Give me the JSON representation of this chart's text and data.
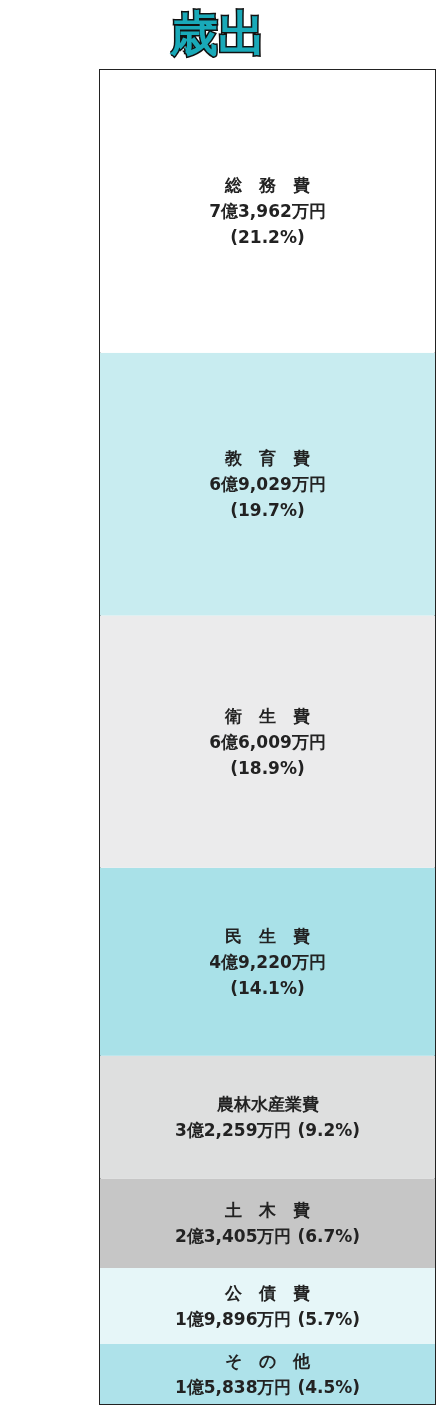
{
  "chart_data": {
    "type": "bar",
    "title": "歳出",
    "stacked": true,
    "categories": [
      null
    ],
    "legend": false,
    "tick_labels": false,
    "grid": false,
    "series": [
      {
        "name": "そ　の　他",
        "color": "#aee2ea",
        "values": [
          4.5
        ],
        "value_labels": [
          "1億5,838万円 (4.5%)"
        ]
      },
      {
        "name": "公　債　費",
        "color": "#e6f6f8",
        "values": [
          5.7
        ],
        "value_labels": [
          "1億9,896万円 (5.7%)"
        ]
      },
      {
        "name": "土　木　費",
        "color": "#c6c6c6",
        "values": [
          6.7
        ],
        "value_labels": [
          "2億3,405万円 (6.7%)"
        ]
      },
      {
        "name": "農林水産業費",
        "color": "#dedfdf",
        "values": [
          9.2
        ],
        "value_labels": [
          "3億2,259万円 (9.2%)"
        ]
      },
      {
        "name": "民　生　費",
        "color": "#a9e1e8",
        "values": [
          14.1
        ],
        "value_labels": [
          "4億9,220万円\n(14.1%)"
        ]
      },
      {
        "name": "衛　生　費",
        "color": "#ebebec",
        "values": [
          18.9
        ],
        "value_labels": [
          "6億6,009万円\n(18.9%)"
        ]
      },
      {
        "name": "教　育　費",
        "color": "#c8ecf0",
        "values": [
          19.7
        ],
        "value_labels": [
          "6億9,029万円\n(19.7%)"
        ]
      },
      {
        "name": "総　務　費",
        "color": "#ffffff",
        "values": [
          21.2
        ],
        "value_labels": [
          "7億3,962万円\n(21.2%)"
        ]
      }
    ]
  }
}
